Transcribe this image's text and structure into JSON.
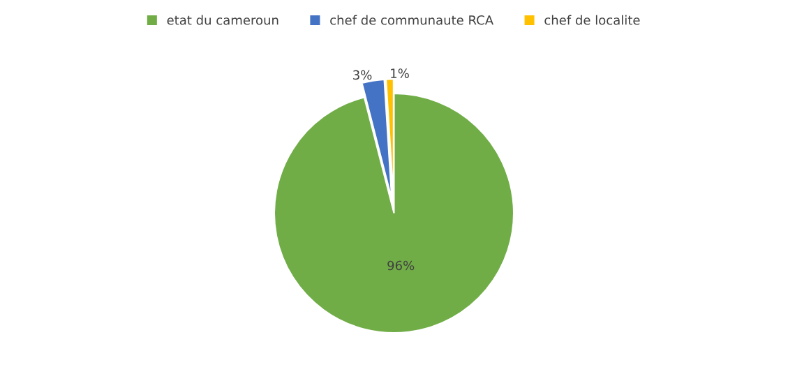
{
  "chart_data": {
    "type": "pie",
    "categories": [
      "etat du cameroun",
      "chef de communaute RCA",
      "chef de localite"
    ],
    "values": [
      96,
      3,
      1
    ],
    "colors": [
      "#70ad47",
      "#4472c4",
      "#ffc000"
    ],
    "value_labels": [
      "96%",
      "3%",
      "1%"
    ],
    "legend": "top"
  }
}
